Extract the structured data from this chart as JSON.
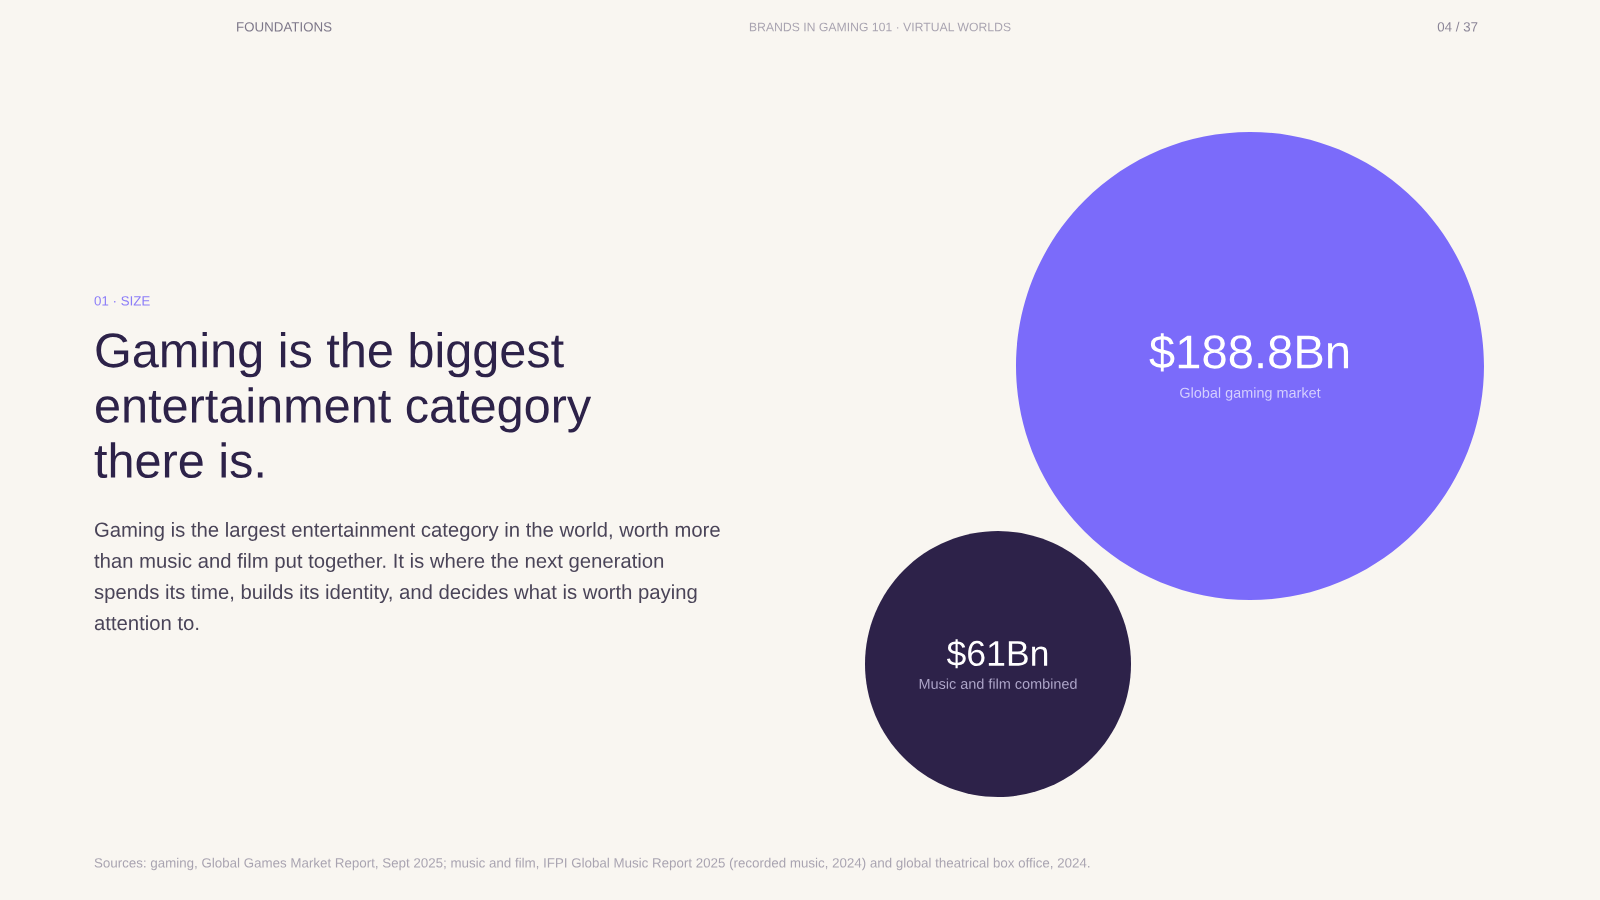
{
  "chart_data": {
    "type": "other",
    "title": "Gaming is the biggest entertainment category there is.",
    "subtitle": "Gaming is the largest entertainment category in the world, worth more than music and film put together. It is where the next generation spends its time, builds its identity, and decides what is worth paying attention to.",
    "categories": [
      "Global gaming market",
      "Music and film combined"
    ],
    "values": [
      188.8,
      61
    ],
    "value_labels": [
      "$188.8Bn",
      "$61Bn"
    ],
    "colors": [
      "#7b6bfa",
      "#2d2249"
    ],
    "annotations": [
      "FOUNDATIONS",
      "BRANDS IN GAMING 101 · VIRTUAL WORLDS",
      "04 / 37",
      "01 · SIZE",
      "Sources: gaming, Global Games Market Report, Sept 2025; music and film, IFPI Global Music Report 2025 (recorded music, 2024) and global theatrical box office, 2024."
    ]
  }
}
